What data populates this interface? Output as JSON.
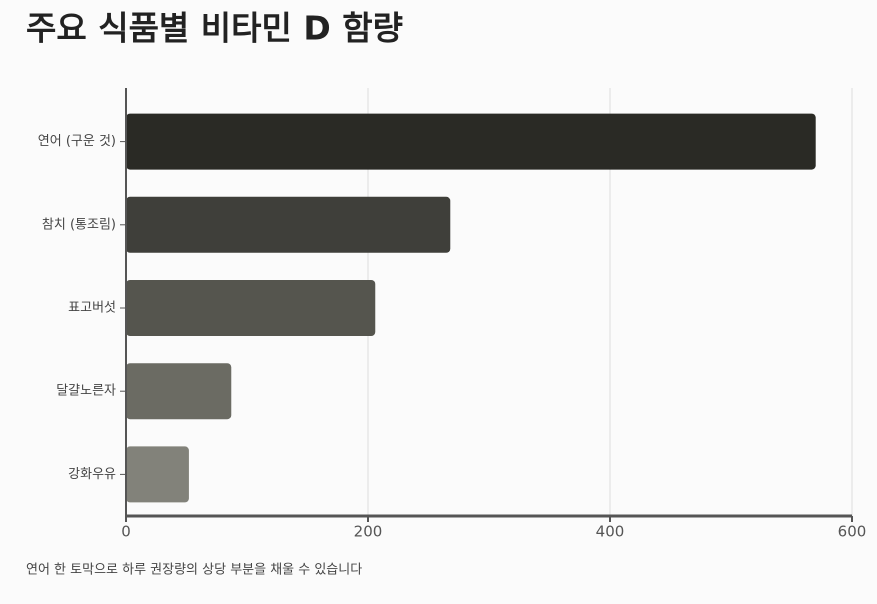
{
  "chart_data": {
    "type": "bar",
    "orientation": "horizontal",
    "title": "주요 식품별 비타민 D 함량",
    "annotation": "연어 한 토막으로 하루 권장량의 상당 부분을 채울 수 있습니다",
    "categories": [
      "연어 (구운 것)",
      "참치 (통조림)",
      "표고버섯",
      "달걀노른자",
      "강화우유"
    ],
    "values": [
      570,
      268,
      206,
      87,
      52
    ],
    "colors": [
      "#2a2a25",
      "#3f3f3a",
      "#55554e",
      "#6b6b63",
      "#82827a"
    ],
    "xlim": [
      0,
      600
    ],
    "xticks": [
      0,
      200,
      400,
      600
    ],
    "grid": true
  }
}
